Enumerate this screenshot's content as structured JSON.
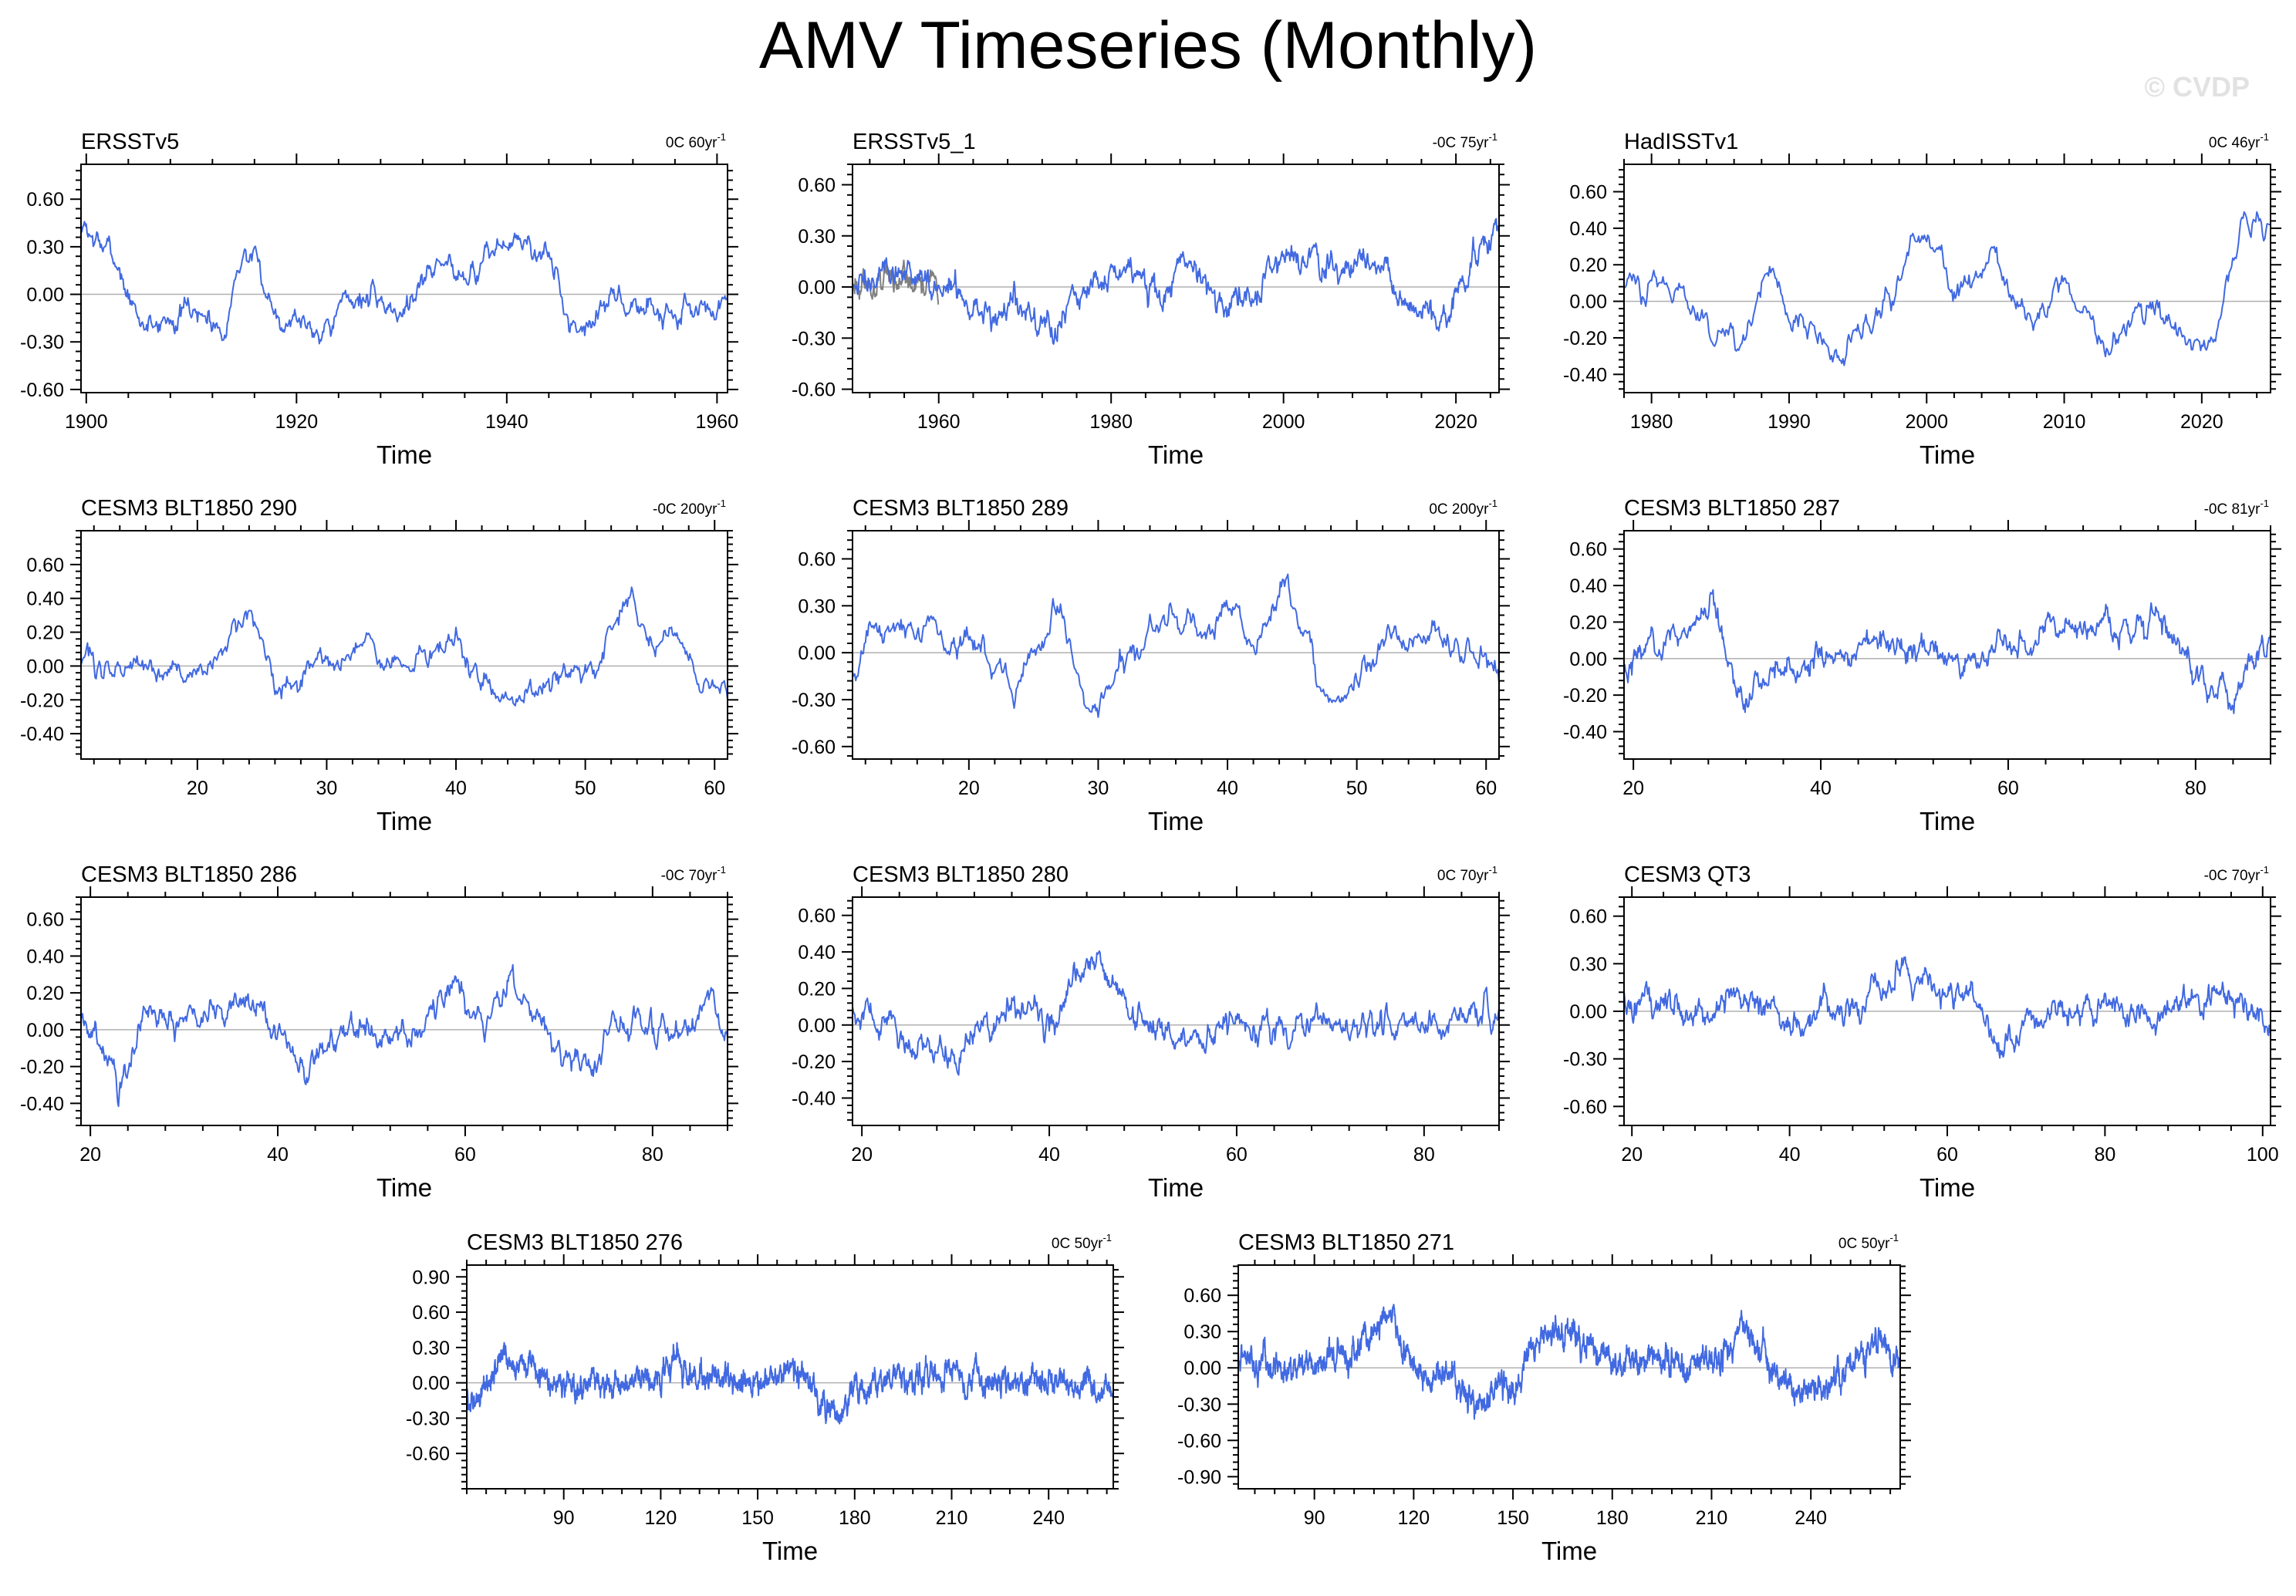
{
  "title": "AMV Timeseries (Monthly)",
  "watermark": "© CVDP",
  "colors": {
    "series": "#4169e1",
    "obs_overlay": "#808080",
    "zero": "#b0b0b0",
    "axes": "#000000"
  },
  "chart_data": [
    {
      "type": "line",
      "title": "ERSSTv5",
      "trend": "0C 60yr",
      "trend_unit_exp": "-1",
      "xlabel": "Time",
      "xlim": [
        1899.5,
        1961
      ],
      "xticks": [
        1900,
        1920,
        1940,
        1960
      ],
      "ylim": [
        -0.62,
        0.82
      ],
      "yticks": [
        -0.6,
        -0.3,
        0.0,
        0.3,
        0.6
      ],
      "profile": [
        [
          1900,
          0.4
        ],
        [
          1903,
          0.2
        ],
        [
          1905,
          -0.2
        ],
        [
          1910,
          -0.1
        ],
        [
          1913,
          -0.2
        ],
        [
          1915,
          0.3
        ],
        [
          1918,
          -0.1
        ],
        [
          1922,
          -0.2
        ],
        [
          1926,
          0.0
        ],
        [
          1930,
          -0.1
        ],
        [
          1933,
          0.2
        ],
        [
          1937,
          0.15
        ],
        [
          1940,
          0.35
        ],
        [
          1944,
          0.25
        ],
        [
          1946,
          -0.2
        ],
        [
          1950,
          -0.05
        ],
        [
          1955,
          -0.1
        ],
        [
          1960,
          -0.1
        ]
      ],
      "noise": 0.12
    },
    {
      "type": "line",
      "title": "ERSSTv5_1",
      "trend": "-0C 75yr",
      "trend_unit_exp": "-1",
      "xlabel": "Time",
      "xlim": [
        1950,
        2025
      ],
      "xticks": [
        1960,
        1980,
        2000,
        2020
      ],
      "ylim": [
        -0.62,
        0.72
      ],
      "yticks": [
        -0.6,
        -0.3,
        0.0,
        0.3,
        0.6
      ],
      "profile": [
        [
          1950,
          0.0
        ],
        [
          1955,
          0.05
        ],
        [
          1962,
          0.0
        ],
        [
          1965,
          -0.1
        ],
        [
          1970,
          -0.15
        ],
        [
          1974,
          -0.25
        ],
        [
          1978,
          0.0
        ],
        [
          1982,
          0.1
        ],
        [
          1986,
          -0.05
        ],
        [
          1988,
          0.15
        ],
        [
          1992,
          -0.1
        ],
        [
          1996,
          0.0
        ],
        [
          2000,
          0.2
        ],
        [
          2005,
          0.1
        ],
        [
          2010,
          0.15
        ],
        [
          2015,
          -0.1
        ],
        [
          2019,
          -0.2
        ],
        [
          2023,
          0.3
        ],
        [
          2025,
          0.3
        ]
      ],
      "noise": 0.13,
      "overlay": {
        "xrange": [
          1950,
          1960
        ],
        "noise": 0.12
      }
    },
    {
      "type": "line",
      "title": "HadISSTv1",
      "trend": "0C 46yr",
      "trend_unit_exp": "-1",
      "xlabel": "Time",
      "xlim": [
        1978,
        2025
      ],
      "xticks": [
        1980,
        1990,
        2000,
        2010,
        2020
      ],
      "ylim": [
        -0.5,
        0.75
      ],
      "yticks": [
        -0.4,
        -0.2,
        0.0,
        0.2,
        0.4,
        0.6
      ],
      "profile": [
        [
          1978,
          0.1
        ],
        [
          1981,
          0.1
        ],
        [
          1984,
          -0.15
        ],
        [
          1986,
          -0.25
        ],
        [
          1988,
          0.1
        ],
        [
          1990,
          -0.1
        ],
        [
          1993,
          -0.3
        ],
        [
          1996,
          -0.1
        ],
        [
          1998,
          0.2
        ],
        [
          1999,
          0.35
        ],
        [
          2002,
          0.1
        ],
        [
          2005,
          0.2
        ],
        [
          2008,
          -0.15
        ],
        [
          2010,
          0.15
        ],
        [
          2013,
          -0.2
        ],
        [
          2016,
          0.0
        ],
        [
          2019,
          -0.2
        ],
        [
          2021,
          -0.25
        ],
        [
          2023,
          0.4
        ],
        [
          2025,
          0.45
        ]
      ],
      "noise": 0.12
    },
    {
      "type": "line",
      "title": "CESM3 BLT1850 290",
      "trend": "-0C 200yr",
      "trend_unit_exp": "-1",
      "xlabel": "Time",
      "xlim": [
        11,
        61
      ],
      "xticks": [
        20,
        30,
        40,
        50,
        60
      ],
      "ylim": [
        -0.55,
        0.8
      ],
      "yticks": [
        -0.4,
        -0.2,
        0.0,
        0.2,
        0.4,
        0.6
      ],
      "profile": [
        [
          11,
          0.0
        ],
        [
          15,
          0.0
        ],
        [
          20,
          -0.05
        ],
        [
          24,
          0.3
        ],
        [
          26,
          -0.1
        ],
        [
          30,
          0.0
        ],
        [
          33,
          0.1
        ],
        [
          36,
          0.0
        ],
        [
          40,
          0.15
        ],
        [
          44,
          -0.25
        ],
        [
          48,
          -0.05
        ],
        [
          51,
          0.0
        ],
        [
          53.5,
          0.45
        ],
        [
          55,
          0.1
        ],
        [
          57,
          0.2
        ],
        [
          59,
          -0.15
        ],
        [
          61,
          -0.1
        ]
      ],
      "noise": 0.11
    },
    {
      "type": "line",
      "title": "CESM3 BLT1850 289",
      "trend": "0C 200yr",
      "trend_unit_exp": "-1",
      "xlabel": "Time",
      "xlim": [
        11,
        61
      ],
      "xticks": [
        20,
        30,
        40,
        50,
        60
      ],
      "ylim": [
        -0.68,
        0.78
      ],
      "yticks": [
        -0.6,
        -0.3,
        0.0,
        0.3,
        0.6
      ],
      "profile": [
        [
          11,
          -0.1
        ],
        [
          13,
          0.2
        ],
        [
          17,
          0.15
        ],
        [
          21,
          0.0
        ],
        [
          24,
          -0.2
        ],
        [
          27,
          0.3
        ],
        [
          29,
          -0.4
        ],
        [
          32,
          0.0
        ],
        [
          35,
          0.25
        ],
        [
          38,
          0.1
        ],
        [
          40,
          0.3
        ],
        [
          42,
          0.0
        ],
        [
          44.5,
          0.5
        ],
        [
          47,
          -0.2
        ],
        [
          49,
          -0.3
        ],
        [
          52,
          0.1
        ],
        [
          55,
          0.1
        ],
        [
          58,
          0.1
        ],
        [
          61,
          -0.1
        ]
      ],
      "noise": 0.14
    },
    {
      "type": "line",
      "title": "CESM3 BLT1850 287",
      "trend": "-0C 81yr",
      "trend_unit_exp": "-1",
      "xlabel": "Time",
      "xlim": [
        19,
        88
      ],
      "xticks": [
        20,
        40,
        60,
        80
      ],
      "ylim": [
        -0.55,
        0.7
      ],
      "yticks": [
        -0.4,
        -0.2,
        0.0,
        0.2,
        0.4,
        0.6
      ],
      "profile": [
        [
          19,
          0.0
        ],
        [
          23,
          0.1
        ],
        [
          28.5,
          0.35
        ],
        [
          31,
          -0.2
        ],
        [
          35,
          -0.05
        ],
        [
          40,
          0.0
        ],
        [
          45,
          0.05
        ],
        [
          50,
          0.1
        ],
        [
          55,
          -0.05
        ],
        [
          60,
          0.1
        ],
        [
          65,
          0.15
        ],
        [
          70,
          0.2
        ],
        [
          75,
          0.15
        ],
        [
          78,
          0.2
        ],
        [
          80,
          -0.05
        ],
        [
          84,
          -0.2
        ],
        [
          86,
          0.0
        ],
        [
          88,
          0.1
        ]
      ],
      "noise": 0.12
    },
    {
      "type": "line",
      "title": "CESM3 BLT1850 286",
      "trend": "-0C 70yr",
      "trend_unit_exp": "-1",
      "xlabel": "Time",
      "xlim": [
        19,
        88
      ],
      "xticks": [
        20,
        40,
        60,
        80
      ],
      "ylim": [
        -0.52,
        0.72
      ],
      "yticks": [
        -0.4,
        -0.2,
        0.0,
        0.2,
        0.4,
        0.6
      ],
      "profile": [
        [
          19,
          0.1
        ],
        [
          22,
          -0.1
        ],
        [
          23,
          -0.3
        ],
        [
          26,
          0.1
        ],
        [
          30,
          0.1
        ],
        [
          35,
          0.1
        ],
        [
          37,
          0.2
        ],
        [
          40,
          0.0
        ],
        [
          43,
          -0.2
        ],
        [
          47,
          0.0
        ],
        [
          51,
          -0.1
        ],
        [
          55,
          0.0
        ],
        [
          59,
          0.2
        ],
        [
          62,
          0.0
        ],
        [
          65,
          0.3
        ],
        [
          67,
          0.05
        ],
        [
          70,
          -0.1
        ],
        [
          73,
          -0.2
        ],
        [
          76,
          0.0
        ],
        [
          80,
          0.0
        ],
        [
          84,
          0.0
        ],
        [
          86,
          0.15
        ],
        [
          88,
          0.0
        ]
      ],
      "noise": 0.11
    },
    {
      "type": "line",
      "title": "CESM3 BLT1850 280",
      "trend": "0C 70yr",
      "trend_unit_exp": "-1",
      "xlabel": "Time",
      "xlim": [
        19,
        88
      ],
      "xticks": [
        20,
        40,
        60,
        80
      ],
      "ylim": [
        -0.55,
        0.7
      ],
      "yticks": [
        -0.4,
        -0.2,
        0.0,
        0.2,
        0.4,
        0.6
      ],
      "profile": [
        [
          19,
          0.1
        ],
        [
          23,
          0.0
        ],
        [
          27,
          -0.15
        ],
        [
          30,
          -0.2
        ],
        [
          33,
          0.0
        ],
        [
          37,
          0.1
        ],
        [
          41,
          0.0
        ],
        [
          44,
          0.4
        ],
        [
          47,
          0.2
        ],
        [
          50,
          0.0
        ],
        [
          55,
          -0.05
        ],
        [
          60,
          0.0
        ],
        [
          65,
          -0.05
        ],
        [
          70,
          0.05
        ],
        [
          75,
          0.0
        ],
        [
          80,
          0.05
        ],
        [
          85,
          0.05
        ],
        [
          88,
          0.0
        ]
      ],
      "noise": 0.12
    },
    {
      "type": "line",
      "title": "CESM3 QT3",
      "trend": "-0C 70yr",
      "trend_unit_exp": "-1",
      "xlabel": "Time",
      "xlim": [
        19,
        101
      ],
      "xticks": [
        20,
        40,
        60,
        80,
        100
      ],
      "ylim": [
        -0.72,
        0.72
      ],
      "yticks": [
        -0.6,
        -0.3,
        0.0,
        0.3,
        0.6
      ],
      "profile": [
        [
          19,
          0.1
        ],
        [
          25,
          0.0
        ],
        [
          30,
          0.0
        ],
        [
          35,
          0.1
        ],
        [
          40,
          -0.05
        ],
        [
          45,
          0.0
        ],
        [
          50,
          0.1
        ],
        [
          55,
          0.25
        ],
        [
          60,
          0.1
        ],
        [
          63,
          0.05
        ],
        [
          67,
          -0.3
        ],
        [
          70,
          -0.05
        ],
        [
          75,
          0.0
        ],
        [
          80,
          0.05
        ],
        [
          85,
          0.0
        ],
        [
          90,
          0.05
        ],
        [
          95,
          0.1
        ],
        [
          100,
          0.0
        ]
      ],
      "noise": 0.13
    },
    {
      "type": "line",
      "title": "CESM3 BLT1850 276",
      "trend": "0C 50yr",
      "trend_unit_exp": "-1",
      "xlabel": "Time",
      "xlim": [
        60,
        260
      ],
      "xticks": [
        90,
        120,
        150,
        180,
        210,
        240
      ],
      "ylim": [
        -0.9,
        1.0
      ],
      "yticks": [
        -0.6,
        -0.3,
        0.0,
        0.3,
        0.6,
        0.9
      ],
      "profile": [
        [
          60,
          -0.2
        ],
        [
          65,
          0.0
        ],
        [
          70,
          0.2
        ],
        [
          80,
          0.1
        ],
        [
          90,
          0.0
        ],
        [
          100,
          0.05
        ],
        [
          110,
          0.0
        ],
        [
          120,
          0.05
        ],
        [
          125,
          0.2
        ],
        [
          130,
          0.05
        ],
        [
          140,
          0.0
        ],
        [
          150,
          0.0
        ],
        [
          160,
          0.1
        ],
        [
          165,
          0.05
        ],
        [
          170,
          -0.2
        ],
        [
          175,
          -0.3
        ],
        [
          180,
          -0.05
        ],
        [
          190,
          0.0
        ],
        [
          200,
          0.05
        ],
        [
          210,
          0.1
        ],
        [
          220,
          0.0
        ],
        [
          230,
          0.0
        ],
        [
          240,
          0.05
        ],
        [
          250,
          0.0
        ],
        [
          260,
          -0.1
        ]
      ],
      "noise": 0.16
    },
    {
      "type": "line",
      "title": "CESM3 BLT1850 271",
      "trend": "0C 50yr",
      "trend_unit_exp": "-1",
      "xlabel": "Time",
      "xlim": [
        67,
        267
      ],
      "xticks": [
        90,
        120,
        150,
        180,
        210,
        240
      ],
      "ylim": [
        -1.0,
        0.85
      ],
      "yticks": [
        -0.9,
        -0.6,
        -0.3,
        0.0,
        0.3,
        0.6
      ],
      "profile": [
        [
          67,
          0.1
        ],
        [
          80,
          0.0
        ],
        [
          90,
          0.0
        ],
        [
          100,
          0.1
        ],
        [
          110,
          0.35
        ],
        [
          115,
          0.3
        ],
        [
          120,
          0.0
        ],
        [
          130,
          -0.1
        ],
        [
          140,
          -0.3
        ],
        [
          150,
          -0.2
        ],
        [
          155,
          0.2
        ],
        [
          160,
          0.3
        ],
        [
          170,
          0.2
        ],
        [
          180,
          0.05
        ],
        [
          190,
          0.1
        ],
        [
          200,
          0.05
        ],
        [
          210,
          0.05
        ],
        [
          220,
          0.3
        ],
        [
          225,
          0.2
        ],
        [
          230,
          -0.1
        ],
        [
          240,
          -0.2
        ],
        [
          250,
          -0.05
        ],
        [
          260,
          0.2
        ],
        [
          267,
          0.0
        ]
      ],
      "noise": 0.16
    }
  ]
}
